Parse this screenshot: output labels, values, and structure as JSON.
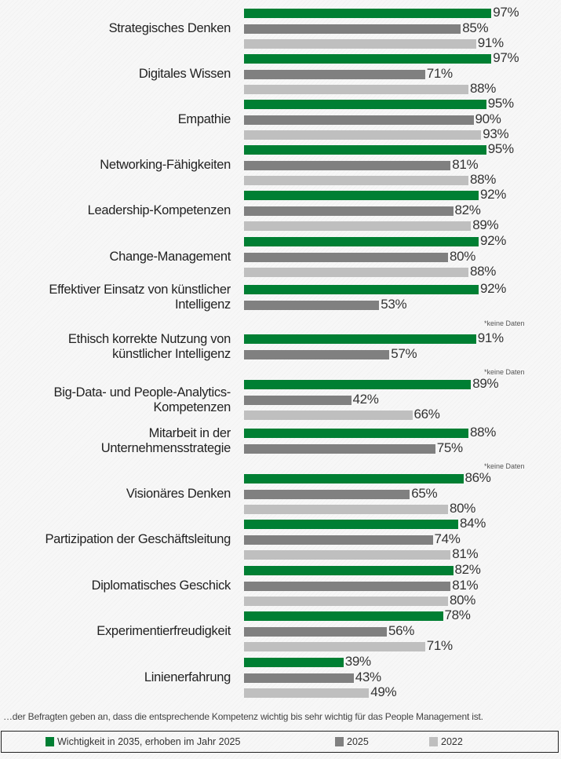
{
  "chart_data": {
    "type": "bar",
    "orientation": "horizontal",
    "unit": "%",
    "categories": [
      "Strategisches Denken",
      "Digitales Wissen",
      "Empathie",
      "Networking-Fähigkeiten",
      "Leadership-Kompetenzen",
      "Change-Management",
      "Effektiver Einsatz von künstlicher Intelligenz",
      "Ethisch korrekte Nutzung von künstlicher Intelligenz",
      "Big-Data- und People-Analytics-Kompetenzen",
      "Mitarbeit in der Unternehmensstrategie",
      "Visionäres Denken",
      "Partizipation der Geschäftsleitung",
      "Diplomatisches Geschick",
      "Experimentierfreudigkeit",
      "Linienerfahrung"
    ],
    "category_lines": [
      [
        "Strategisches Denken"
      ],
      [
        "Digitales Wissen"
      ],
      [
        "Empathie"
      ],
      [
        "Networking-Fähigkeiten"
      ],
      [
        "Leadership-Kompetenzen"
      ],
      [
        "Change-Management"
      ],
      [
        "Effektiver Einsatz von künstlicher",
        "Intelligenz"
      ],
      [
        "Ethisch korrekte Nutzung von",
        "künstlicher Intelligenz"
      ],
      [
        "Big-Data- und People-Analytics-",
        "Kompetenzen"
      ],
      [
        "Mitarbeit in der",
        "Unternehmensstrategie"
      ],
      [
        "Visionäres Denken"
      ],
      [
        "Partizipation der Geschäftsleitung"
      ],
      [
        "Diplomatisches Geschick"
      ],
      [
        "Experimentierfreudigkeit"
      ],
      [
        "Linienerfahrung"
      ]
    ],
    "series": [
      {
        "name": "Wichtigkeit in 2035, erhoben im Jahr 2025",
        "color": "#007f33",
        "values": [
          97,
          97,
          95,
          95,
          92,
          92,
          92,
          91,
          89,
          88,
          86,
          84,
          82,
          78,
          39
        ]
      },
      {
        "name": "2025",
        "color": "#808080",
        "values": [
          85,
          71,
          90,
          81,
          82,
          80,
          53,
          57,
          42,
          75,
          65,
          74,
          81,
          56,
          43
        ]
      },
      {
        "name": "2022",
        "color": "#bfbfbf",
        "values": [
          91,
          88,
          93,
          88,
          89,
          88,
          null,
          null,
          66,
          null,
          80,
          81,
          80,
          71,
          49
        ]
      }
    ],
    "annotations": [
      {
        "category": "Effektiver Einsatz von künstlicher Intelligenz",
        "text": "*keine Daten"
      },
      {
        "category": "Ethisch korrekte Nutzung von künstlicher Intelligenz",
        "text": "*keine Daten"
      },
      {
        "category": "Mitarbeit in der Unternehmensstrategie",
        "text": "*keine Daten"
      }
    ],
    "xlim": [
      0,
      100
    ],
    "grid": false,
    "legend_position": "bottom",
    "footnote": "…der Befragten geben an, dass die entsprechende Kompetenz wichtig bis sehr wichtig für das People Management ist."
  },
  "legend": [
    {
      "label": "Wichtigkeit in 2035, erhoben im Jahr 2025",
      "color": "#007f33"
    },
    {
      "label": "2025",
      "color": "#808080"
    },
    {
      "label": "2022",
      "color": "#bfbfbf"
    }
  ]
}
